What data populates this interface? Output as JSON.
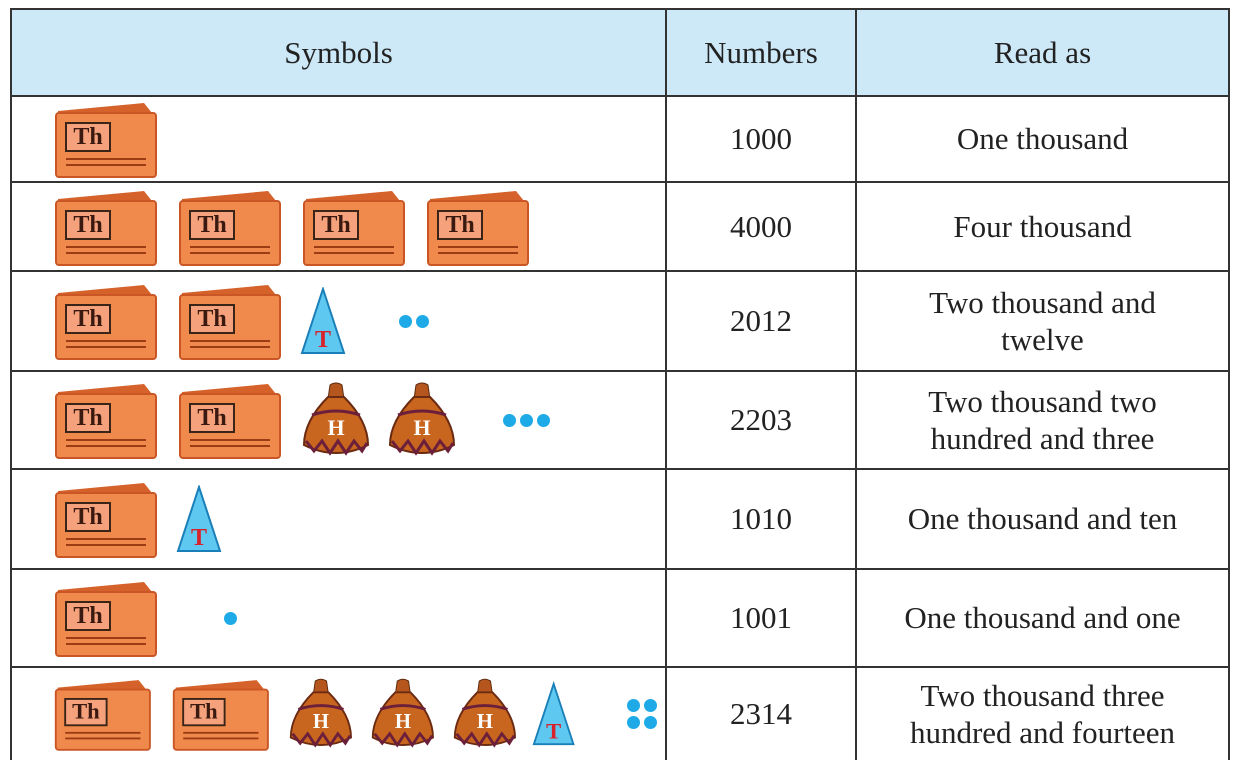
{
  "table": {
    "headers": [
      "Symbols",
      "Numbers",
      "Read as"
    ],
    "rows": [
      {
        "symbols": [
          "Th"
        ],
        "number": 1000,
        "read_as": [
          "One thousand"
        ]
      },
      {
        "symbols": [
          "Th",
          "Th",
          "Th",
          "Th"
        ],
        "number": 4000,
        "read_as": [
          "Four thousand"
        ]
      },
      {
        "symbols": [
          "Th",
          "Th",
          "T"
        ],
        "ones": 2,
        "number": 2012,
        "read_as": [
          "Two thousand and",
          "twelve"
        ]
      },
      {
        "symbols": [
          "Th",
          "Th",
          "H",
          "H"
        ],
        "ones": 3,
        "number": 2203,
        "read_as": [
          "Two thousand two",
          "hundred and three"
        ]
      },
      {
        "symbols": [
          "Th",
          "T"
        ],
        "number": 1010,
        "read_as": [
          "One thousand and ten"
        ]
      },
      {
        "symbols": [
          "Th"
        ],
        "ones": 1,
        "number": 1001,
        "read_as": [
          "One thousand and one"
        ]
      },
      {
        "symbols": [
          "Th",
          "Th",
          "H",
          "H",
          "H",
          "T"
        ],
        "ones": 4,
        "number": 2314,
        "read_as": [
          "Two thousand three",
          "hundred and fourteen"
        ]
      }
    ]
  }
}
